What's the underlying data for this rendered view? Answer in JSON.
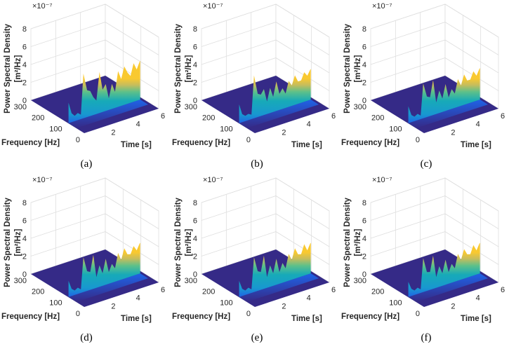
{
  "chart_data": {
    "type": "surface3d",
    "shared": {
      "xlabel": "Time [s]",
      "ylabel": "Frequency [Hz]",
      "zlabel": "Power Spectral Density",
      "zunit": "[m²/Hz]",
      "zexponent": "×10⁻⁷",
      "xticks": [
        "2",
        "4",
        "6"
      ],
      "yticks": [
        "0",
        "100",
        "200",
        "300"
      ],
      "zticks": [
        "0",
        "2",
        "4",
        "6",
        "8"
      ],
      "xlim": [
        0,
        6
      ],
      "ylim": [
        0,
        300
      ],
      "zlim": [
        0,
        8
      ],
      "grid": true,
      "colormap": "parula",
      "colors": {
        "floor": "#352a87",
        "low": "#1f63e6",
        "mid": "#17aab8",
        "high": "#f9c930",
        "grid": "#dedede"
      }
    },
    "time_s": [
      0,
      0.25,
      0.5,
      0.75,
      1.0,
      1.2,
      1.5,
      1.75,
      2.0,
      2.25,
      2.5,
      2.75,
      3.0,
      3.25,
      3.5,
      3.75,
      4.0,
      4.25,
      4.5,
      4.75,
      5.0,
      5.25,
      5.5,
      5.75
    ],
    "panels": [
      {
        "caption": "(a)",
        "ridge_frequency_hz": 90,
        "psd_e7": [
          2.3,
          1.0,
          0.6,
          0.8,
          0.5,
          5.0,
          3.0,
          2.8,
          2.0,
          1.5,
          4.6,
          2.5,
          3.0,
          1.3,
          2.8,
          1.8,
          4.0,
          3.0,
          4.3,
          3.5,
          3.0,
          4.3,
          3.5,
          4.3
        ]
      },
      {
        "caption": "(b)",
        "ridge_frequency_hz": 90,
        "psd_e7": [
          2.1,
          0.9,
          0.6,
          0.7,
          0.5,
          4.8,
          2.6,
          2.4,
          2.9,
          1.4,
          2.8,
          1.7,
          3.3,
          1.8,
          2.3,
          1.6,
          2.9,
          2.3,
          3.3,
          2.5,
          2.5,
          3.3,
          2.8,
          3.4
        ]
      },
      {
        "caption": "(c)",
        "ridge_frequency_hz": 90,
        "psd_e7": [
          1.9,
          0.8,
          0.5,
          0.7,
          0.4,
          3.9,
          2.3,
          2.1,
          3.9,
          1.3,
          2.5,
          1.5,
          3.0,
          1.4,
          2.2,
          1.6,
          3.1,
          2.3,
          3.4,
          2.6,
          2.6,
          3.4,
          2.8,
          3.5
        ]
      },
      {
        "caption": "(d)",
        "ridge_frequency_hz": 90,
        "psd_e7": [
          1.8,
          0.8,
          0.5,
          0.7,
          0.4,
          3.9,
          2.2,
          2.0,
          3.8,
          1.2,
          2.4,
          1.4,
          2.9,
          1.3,
          2.1,
          1.5,
          3.1,
          2.2,
          3.4,
          2.6,
          2.5,
          3.3,
          2.7,
          3.4
        ]
      },
      {
        "caption": "(e)",
        "ridge_frequency_hz": 90,
        "psd_e7": [
          1.8,
          0.8,
          0.5,
          0.7,
          0.4,
          3.9,
          2.2,
          2.0,
          3.7,
          1.2,
          2.4,
          1.4,
          2.9,
          1.3,
          2.2,
          1.5,
          3.0,
          2.2,
          3.4,
          2.6,
          2.5,
          3.5,
          2.7,
          3.4
        ]
      },
      {
        "caption": "(f)",
        "ridge_frequency_hz": 90,
        "psd_e7": [
          1.7,
          0.8,
          0.5,
          0.7,
          0.4,
          3.8,
          2.1,
          2.0,
          3.7,
          1.2,
          2.3,
          1.4,
          2.8,
          1.3,
          2.1,
          1.5,
          3.0,
          2.2,
          3.3,
          2.6,
          2.5,
          3.4,
          2.7,
          3.4
        ]
      }
    ]
  }
}
